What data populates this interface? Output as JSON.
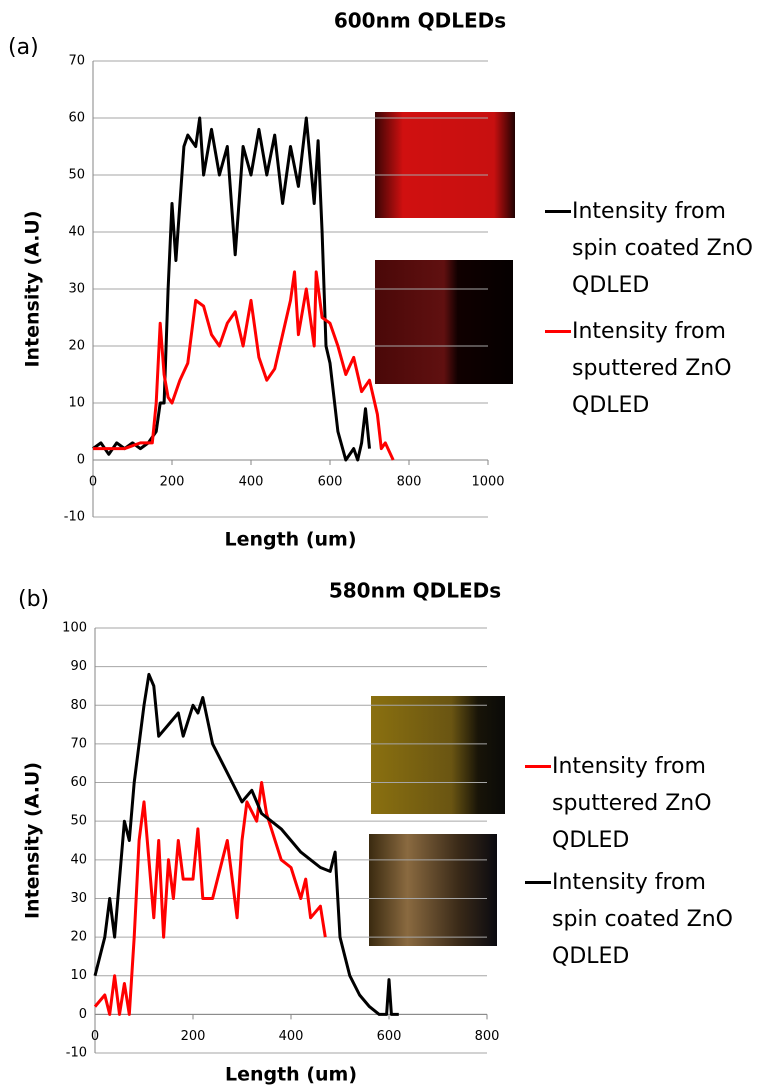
{
  "chart_data": [
    {
      "type": "line",
      "panel": "(a)",
      "title": "600nm QDLEDs",
      "x_label": "Length (um)",
      "y_label": "Intensity (A.U)",
      "xlim": [
        0,
        1000
      ],
      "xticks": [
        0,
        200,
        400,
        600,
        800,
        1000
      ],
      "ylim": [
        -10,
        70
      ],
      "yticks": [
        -10,
        0,
        10,
        20,
        30,
        40,
        50,
        60,
        70
      ],
      "grid": true,
      "series": [
        {
          "name": "Intensity from spin coated ZnO QDLED",
          "color": "#000000",
          "x": [
            0,
            20,
            40,
            60,
            80,
            100,
            120,
            140,
            160,
            170,
            180,
            190,
            200,
            210,
            220,
            230,
            240,
            260,
            270,
            280,
            300,
            320,
            340,
            360,
            380,
            400,
            420,
            440,
            460,
            480,
            500,
            520,
            540,
            560,
            570,
            580,
            590,
            600,
            620,
            640,
            660,
            670,
            680,
            690,
            700
          ],
          "values": [
            2,
            3,
            1,
            3,
            2,
            3,
            2,
            3,
            5,
            10,
            10,
            30,
            45,
            35,
            45,
            55,
            57,
            55,
            60,
            50,
            58,
            50,
            55,
            36,
            55,
            50,
            58,
            50,
            57,
            45,
            55,
            48,
            60,
            45,
            56,
            40,
            20,
            17,
            5,
            0,
            2,
            0,
            3,
            9,
            2
          ]
        },
        {
          "name": "Intensity from sputtered ZnO QDLED",
          "color": "#ff0000",
          "x": [
            0,
            40,
            80,
            120,
            150,
            160,
            170,
            180,
            190,
            200,
            220,
            240,
            260,
            280,
            300,
            320,
            340,
            360,
            380,
            400,
            420,
            440,
            460,
            480,
            500,
            510,
            520,
            540,
            560,
            565,
            580,
            600,
            620,
            640,
            660,
            680,
            700,
            720,
            730,
            740,
            760
          ],
          "values": [
            2,
            2,
            2,
            3,
            3,
            10,
            24,
            15,
            11,
            10,
            14,
            17,
            28,
            27,
            22,
            20,
            24,
            26,
            20,
            28,
            18,
            14,
            16,
            22,
            28,
            33,
            22,
            30,
            20,
            33,
            25,
            24,
            20,
            15,
            18,
            12,
            14,
            8,
            2,
            3,
            0
          ]
        }
      ]
    },
    {
      "type": "line",
      "panel": "(b)",
      "title": "580nm QDLEDs",
      "x_label": "Length (um)",
      "y_label": "Intensity (A.U)",
      "xlim": [
        0,
        800
      ],
      "xticks": [
        0,
        200,
        400,
        600,
        800
      ],
      "ylim": [
        -10,
        100
      ],
      "yticks": [
        -10,
        0,
        10,
        20,
        30,
        40,
        50,
        60,
        70,
        80,
        90,
        100
      ],
      "grid": true,
      "series": [
        {
          "name": "Intensity from sputtered ZnO QDLED",
          "color": "#ff0000",
          "x": [
            0,
            20,
            30,
            40,
            50,
            60,
            70,
            80,
            90,
            100,
            110,
            120,
            130,
            140,
            150,
            160,
            170,
            180,
            200,
            210,
            220,
            240,
            260,
            270,
            280,
            290,
            300,
            310,
            330,
            340,
            350,
            360,
            380,
            400,
            420,
            430,
            440,
            460,
            470
          ],
          "values": [
            2,
            5,
            0,
            10,
            0,
            8,
            0,
            20,
            45,
            55,
            40,
            25,
            45,
            20,
            40,
            30,
            45,
            35,
            35,
            48,
            30,
            30,
            40,
            45,
            35,
            25,
            45,
            55,
            50,
            60,
            52,
            48,
            40,
            38,
            30,
            35,
            25,
            28,
            20
          ]
        },
        {
          "name": "Intensity from spin coated ZnO QDLED",
          "color": "#000000",
          "x": [
            0,
            20,
            30,
            40,
            60,
            70,
            80,
            100,
            110,
            120,
            130,
            150,
            170,
            180,
            200,
            210,
            220,
            240,
            260,
            280,
            300,
            320,
            340,
            360,
            380,
            400,
            420,
            440,
            460,
            480,
            490,
            500,
            520,
            540,
            560,
            580,
            595,
            600,
            605,
            620
          ],
          "values": [
            10,
            20,
            30,
            20,
            50,
            45,
            60,
            80,
            88,
            85,
            72,
            75,
            78,
            72,
            80,
            78,
            82,
            70,
            65,
            60,
            55,
            58,
            52,
            50,
            48,
            45,
            42,
            40,
            38,
            37,
            42,
            20,
            10,
            5,
            2,
            0,
            0,
            9,
            0,
            0
          ]
        }
      ]
    }
  ]
}
